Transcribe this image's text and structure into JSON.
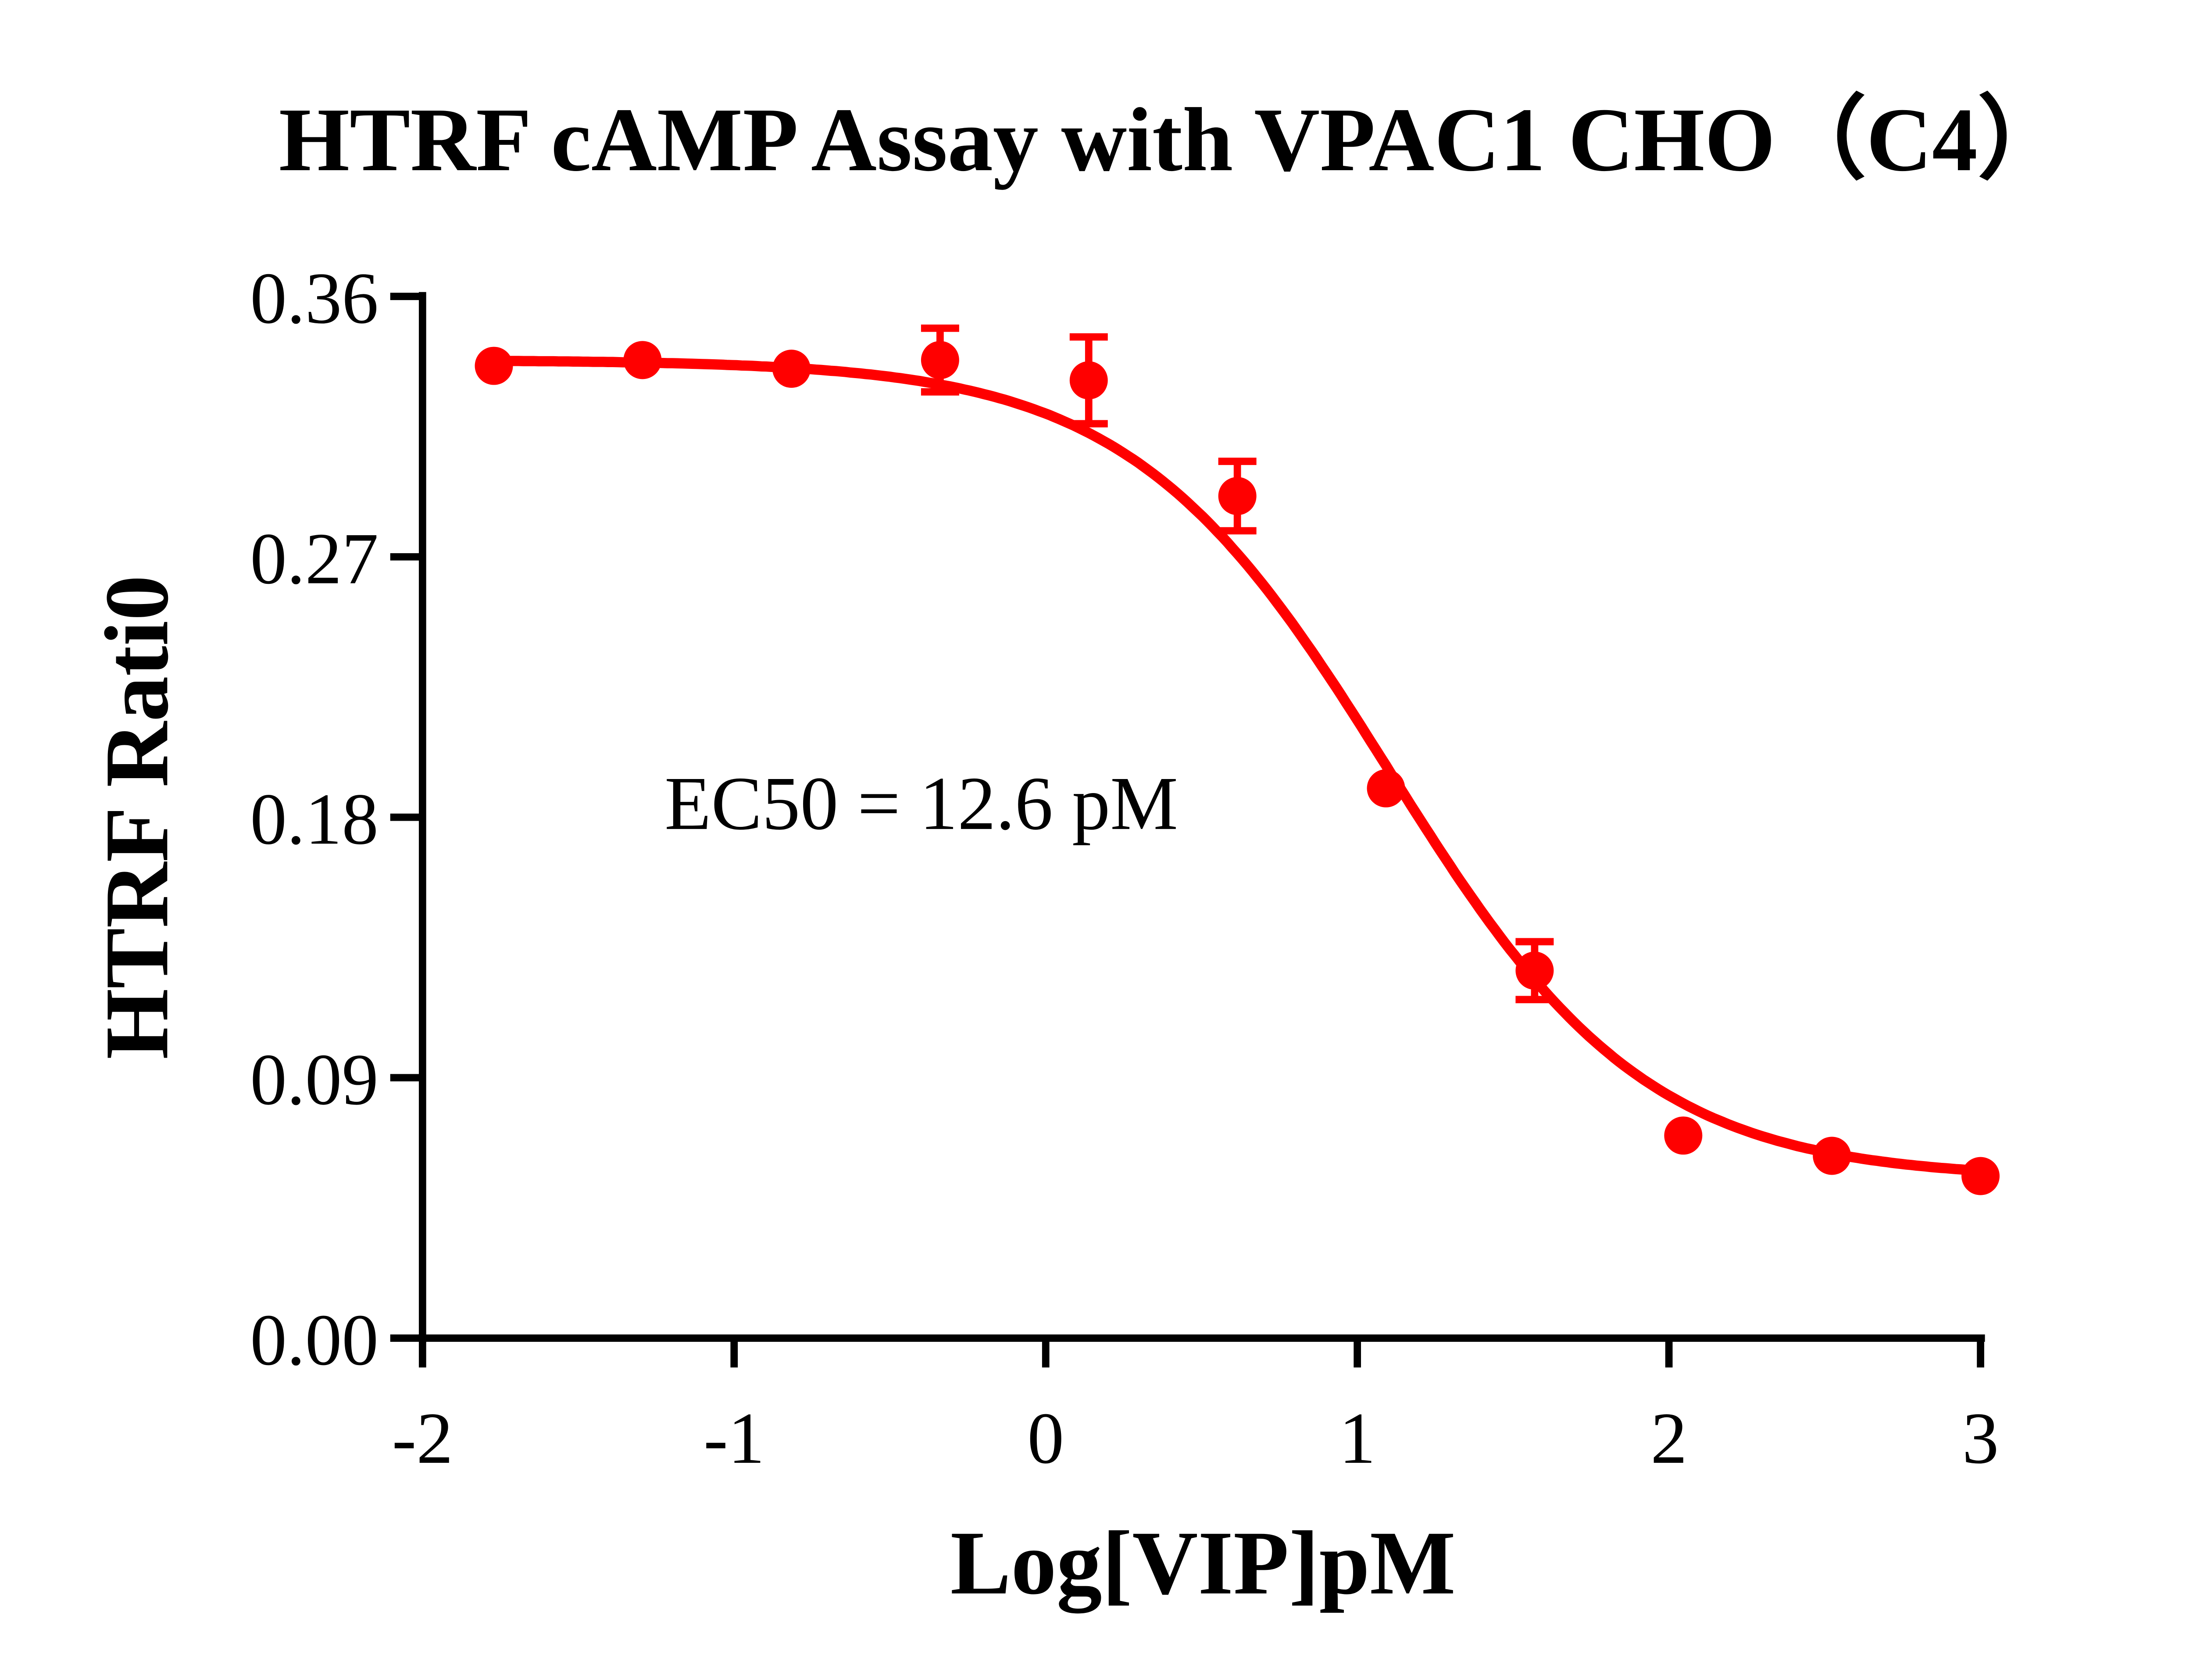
{
  "chart_data": {
    "type": "scatter",
    "title": "HTRF cAMP Assay with VPAC1 CHO（C4）",
    "xlabel": "Log[VIP]pM",
    "ylabel": "HTRF Rati0",
    "xlim": [
      -2,
      3
    ],
    "ylim": [
      0,
      0.36
    ],
    "x_ticks": [
      "-2",
      "-1",
      "0",
      "1",
      "2",
      "3"
    ],
    "y_ticks": [
      "0.00",
      "0.09",
      "0.18",
      "0.27",
      "0.36"
    ],
    "grid": false,
    "annotation": "EC50 = 12.6 pM",
    "color": "#ff0000",
    "points": [
      {
        "x": -1.771,
        "y": 0.336,
        "err": 0
      },
      {
        "x": -1.294,
        "y": 0.338,
        "err": 0
      },
      {
        "x": -0.816,
        "y": 0.335,
        "err": 0
      },
      {
        "x": -0.339,
        "y": 0.338,
        "err": 0.011
      },
      {
        "x": 0.138,
        "y": 0.331,
        "err": 0.015
      },
      {
        "x": 0.615,
        "y": 0.291,
        "err": 0.012
      },
      {
        "x": 1.092,
        "y": 0.19,
        "err": 0
      },
      {
        "x": 1.569,
        "y": 0.127,
        "err": 0.01
      },
      {
        "x": 2.046,
        "y": 0.07,
        "err": 0
      },
      {
        "x": 2.523,
        "y": 0.063,
        "err": 0
      },
      {
        "x": 3.0,
        "y": 0.056,
        "err": 0
      }
    ],
    "fit": {
      "model": "4PL",
      "top": 0.338,
      "bottom": 0.055,
      "logEC50": 1.1,
      "hill": -1.05
    }
  }
}
